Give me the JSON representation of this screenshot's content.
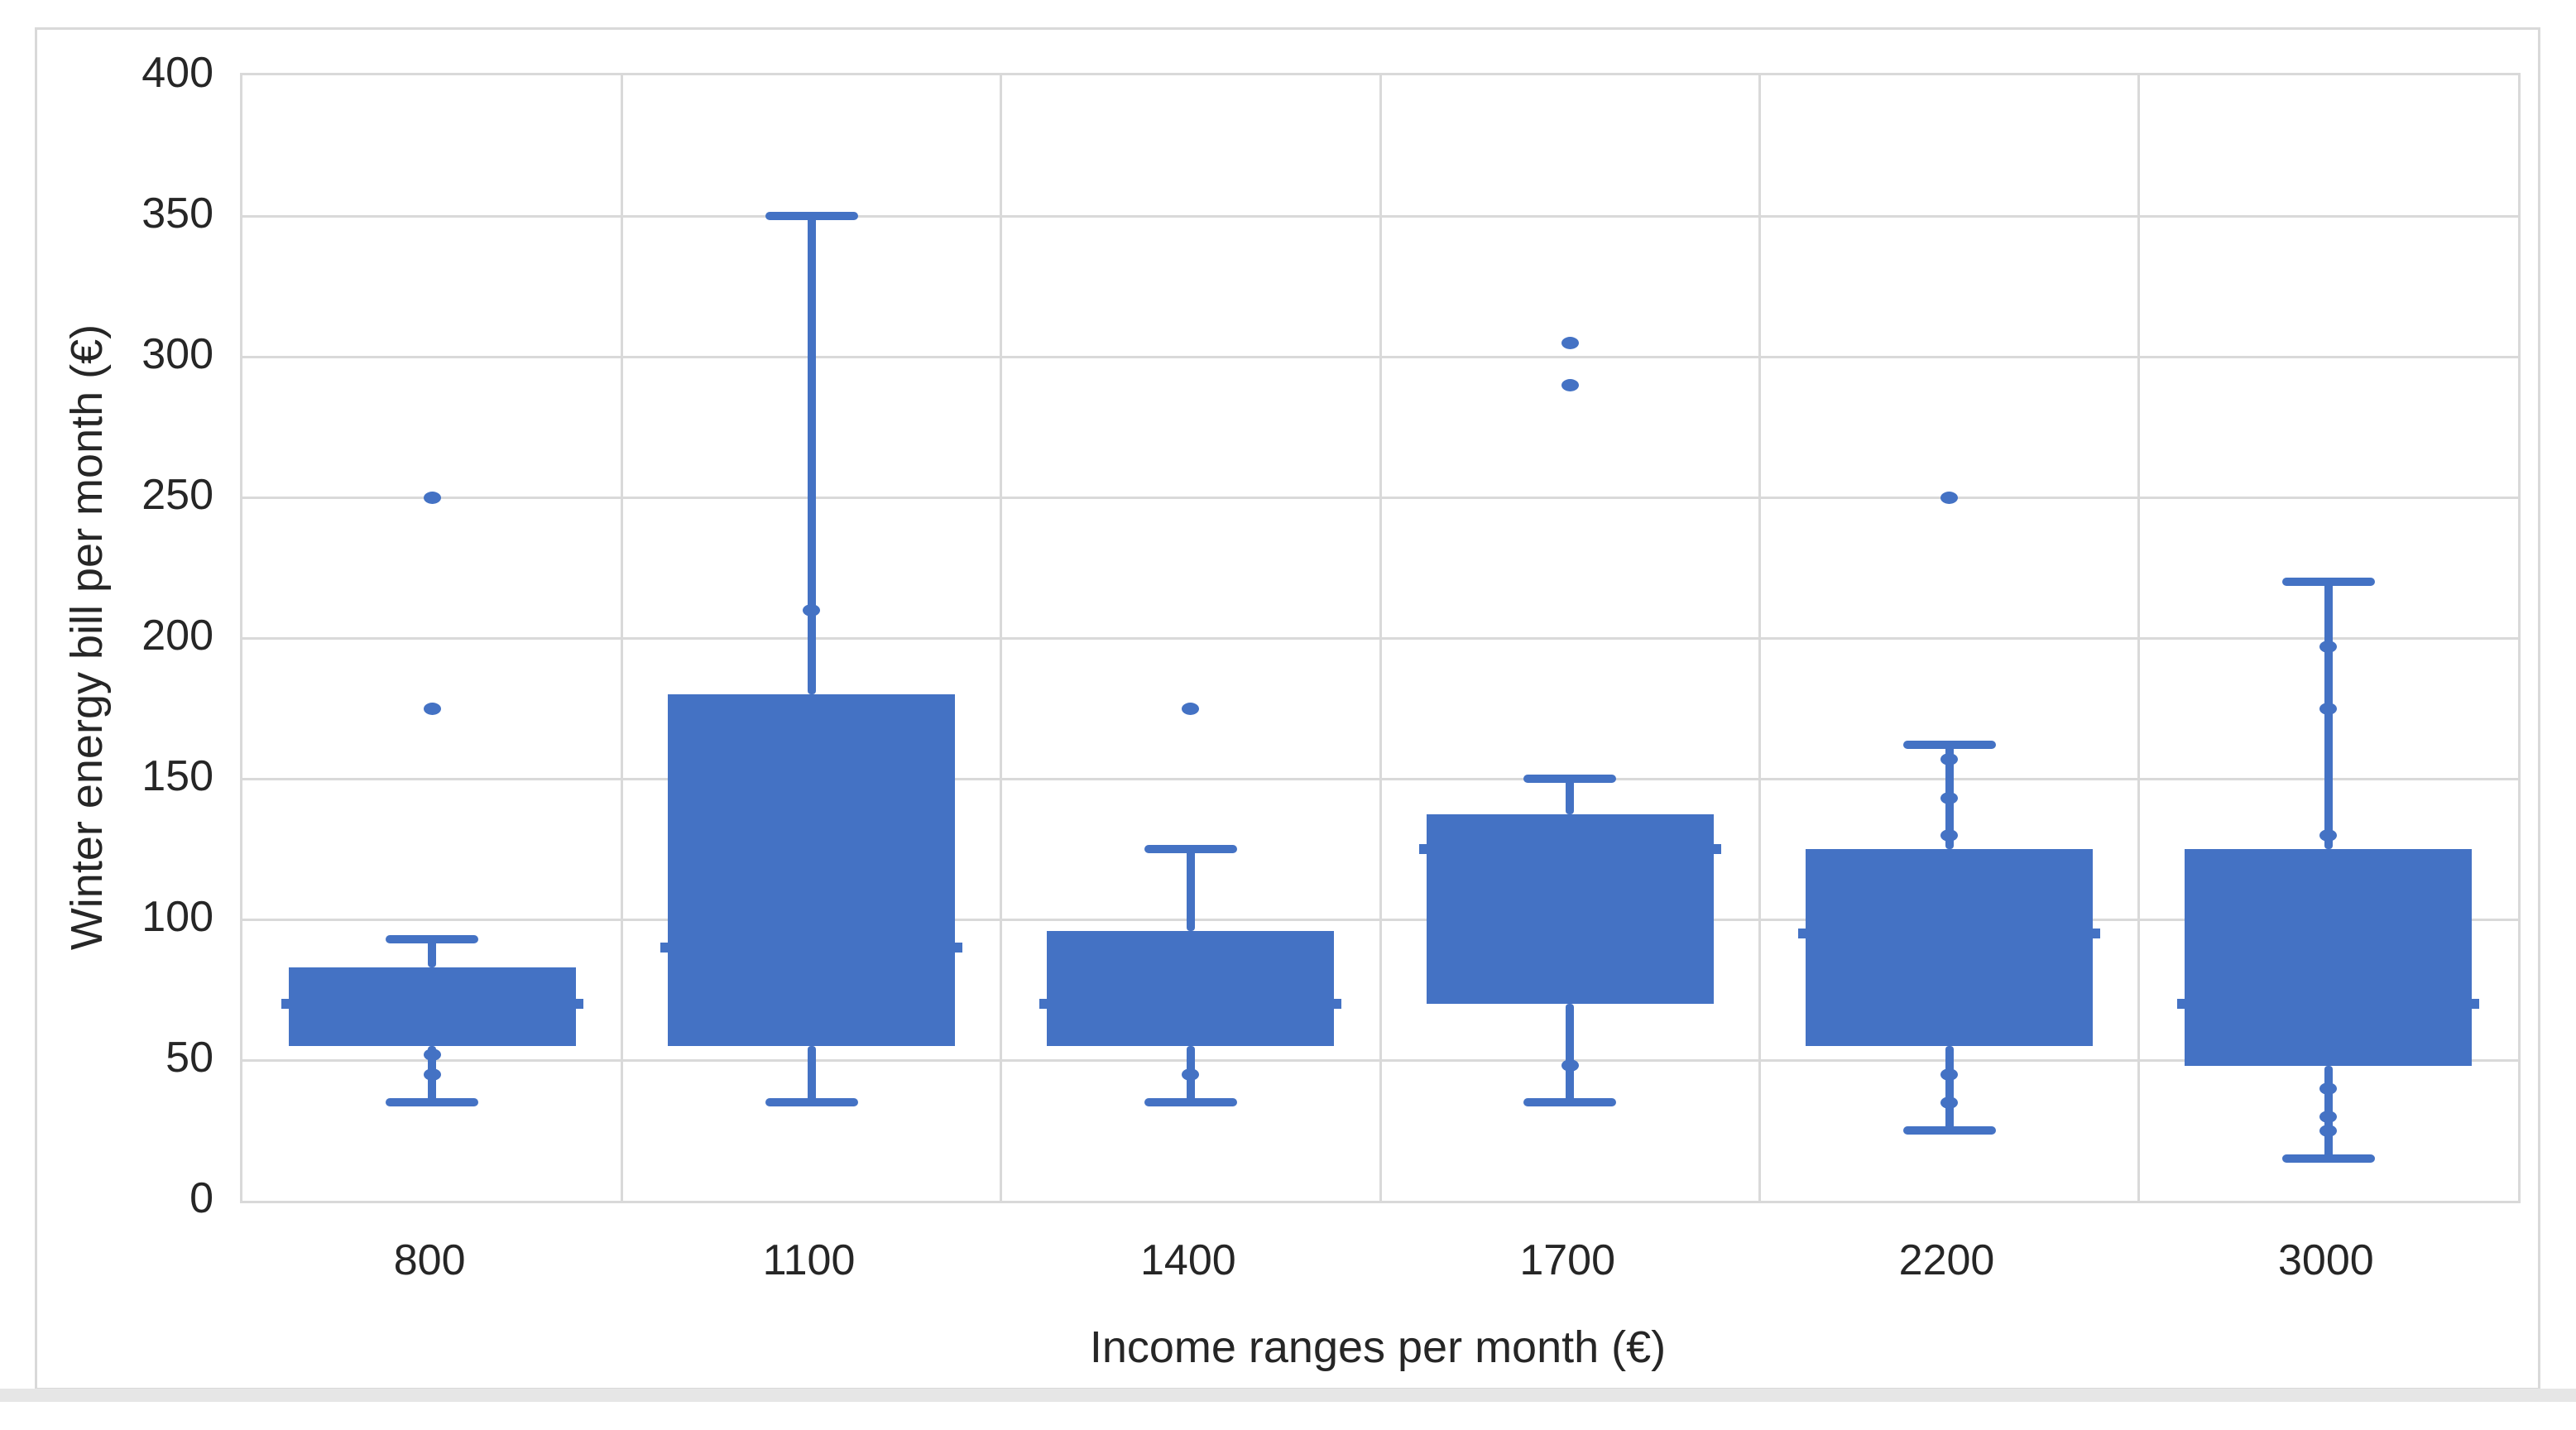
{
  "window": {
    "background": "#FFFFFF",
    "frame_border_color": "#D9D9D9",
    "bottom_strip_color": "#E6E6E6"
  },
  "chart_data": {
    "type": "box",
    "title": "",
    "xlabel": "Income ranges per month (€)",
    "ylabel": "Winter energy bill per month (€)",
    "ylim": [
      0,
      400
    ],
    "yticks": [
      0,
      50,
      100,
      150,
      200,
      250,
      300,
      350,
      400
    ],
    "categories": [
      "800",
      "1100",
      "1400",
      "1700",
      "2200",
      "3000"
    ],
    "grid": {
      "horizontal": true,
      "category_separators": true,
      "gridline_color": "#D9D9D9"
    },
    "legend": "none",
    "box_color": "#4472C4",
    "text_color": "#262626",
    "series": [
      {
        "category": "800",
        "whisker_min": 35,
        "q1": 55,
        "median": 70,
        "q3": 83,
        "whisker_max": 93,
        "outliers": [
          175,
          250
        ],
        "inner_points": [
          52,
          45
        ]
      },
      {
        "category": "1100",
        "whisker_min": 35,
        "q1": 55,
        "median": 90,
        "q3": 180,
        "whisker_max": 350,
        "outliers": [],
        "inner_points": [
          210
        ]
      },
      {
        "category": "1400",
        "whisker_min": 35,
        "q1": 55,
        "median": 70,
        "q3": 96,
        "whisker_max": 125,
        "outliers": [
          175
        ],
        "inner_points": [
          45
        ]
      },
      {
        "category": "1700",
        "whisker_min": 35,
        "q1": 70,
        "median": 125,
        "q3": 137.5,
        "whisker_max": 150,
        "outliers": [
          290,
          305
        ],
        "inner_points": [
          48
        ]
      },
      {
        "category": "2200",
        "whisker_min": 25,
        "q1": 55,
        "median": 95,
        "q3": 125,
        "whisker_max": 162,
        "outliers": [
          250
        ],
        "inner_points": [
          157,
          143,
          130,
          45,
          35
        ]
      },
      {
        "category": "3000",
        "whisker_min": 15,
        "q1": 48,
        "median": 70,
        "q3": 125,
        "whisker_max": 220,
        "outliers": [],
        "inner_points": [
          197,
          175,
          130,
          40,
          30,
          25
        ]
      }
    ]
  }
}
